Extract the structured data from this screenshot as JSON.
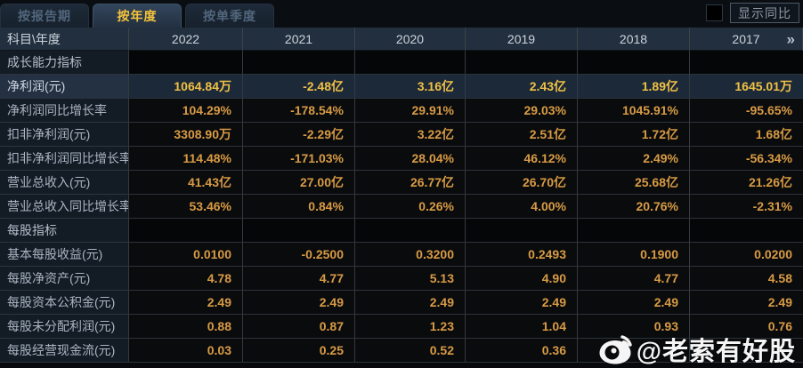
{
  "tabs": [
    {
      "label": "按报告期",
      "active": false
    },
    {
      "label": "按年度",
      "active": true
    },
    {
      "label": "按单季度",
      "active": false
    }
  ],
  "controls": {
    "show_yoy_checkbox_checked": false,
    "show_yoy_label": "显示同比"
  },
  "table": {
    "corner_label": "科目\\年度",
    "years": [
      "2022",
      "2021",
      "2020",
      "2019",
      "2018",
      "2017"
    ],
    "more_icon": "»",
    "rows": [
      {
        "type": "section",
        "label": "成长能力指标",
        "values": [
          "",
          "",
          "",
          "",
          "",
          ""
        ]
      },
      {
        "type": "data",
        "highlight": true,
        "label": "净利润(元)",
        "values": [
          "1064.84万",
          "-2.48亿",
          "3.16亿",
          "2.43亿",
          "1.89亿",
          "1645.01万"
        ]
      },
      {
        "type": "data",
        "label": "净利润同比增长率",
        "values": [
          "104.29%",
          "-178.54%",
          "29.91%",
          "29.03%",
          "1045.91%",
          "-95.65%"
        ]
      },
      {
        "type": "data",
        "label": "扣非净利润(元)",
        "values": [
          "3308.90万",
          "-2.29亿",
          "3.22亿",
          "2.51亿",
          "1.72亿",
          "1.68亿"
        ]
      },
      {
        "type": "data",
        "label": "扣非净利润同比增长率",
        "values": [
          "114.48%",
          "-171.03%",
          "28.04%",
          "46.12%",
          "2.49%",
          "-56.34%"
        ]
      },
      {
        "type": "data",
        "label": "营业总收入(元)",
        "values": [
          "41.43亿",
          "27.00亿",
          "26.77亿",
          "26.70亿",
          "25.68亿",
          "21.26亿"
        ]
      },
      {
        "type": "data",
        "label": "营业总收入同比增长率",
        "values": [
          "53.46%",
          "0.84%",
          "0.26%",
          "4.00%",
          "20.76%",
          "-2.31%"
        ]
      },
      {
        "type": "section",
        "label": "每股指标",
        "values": [
          "",
          "",
          "",
          "",
          "",
          ""
        ]
      },
      {
        "type": "data",
        "label": "基本每股收益(元)",
        "values": [
          "0.0100",
          "-0.2500",
          "0.3200",
          "0.2493",
          "0.1900",
          "0.0200"
        ]
      },
      {
        "type": "data",
        "label": "每股净资产(元)",
        "values": [
          "4.78",
          "4.77",
          "5.13",
          "4.90",
          "4.77",
          "4.58"
        ]
      },
      {
        "type": "data",
        "label": "每股资本公积金(元)",
        "values": [
          "2.49",
          "2.49",
          "2.49",
          "2.49",
          "2.49",
          "2.49"
        ]
      },
      {
        "type": "data",
        "label": "每股未分配利润(元)",
        "values": [
          "0.88",
          "0.87",
          "1.23",
          "1.04",
          "0.93",
          "0.76"
        ]
      },
      {
        "type": "data",
        "label": "每股经营现金流(元)",
        "values": [
          "0.03",
          "0.25",
          "0.52",
          "0.36",
          "",
          ""
        ]
      }
    ]
  },
  "watermark": {
    "text": "@老索有好股"
  },
  "colors": {
    "accent_yellow": "#f5c33b",
    "value_orange": "#d89b44",
    "highlight_value_yellow": "#f1c146",
    "header_bg": "#222f3e",
    "label_bg": "#131b25",
    "highlight_bg": "#1c2938"
  }
}
